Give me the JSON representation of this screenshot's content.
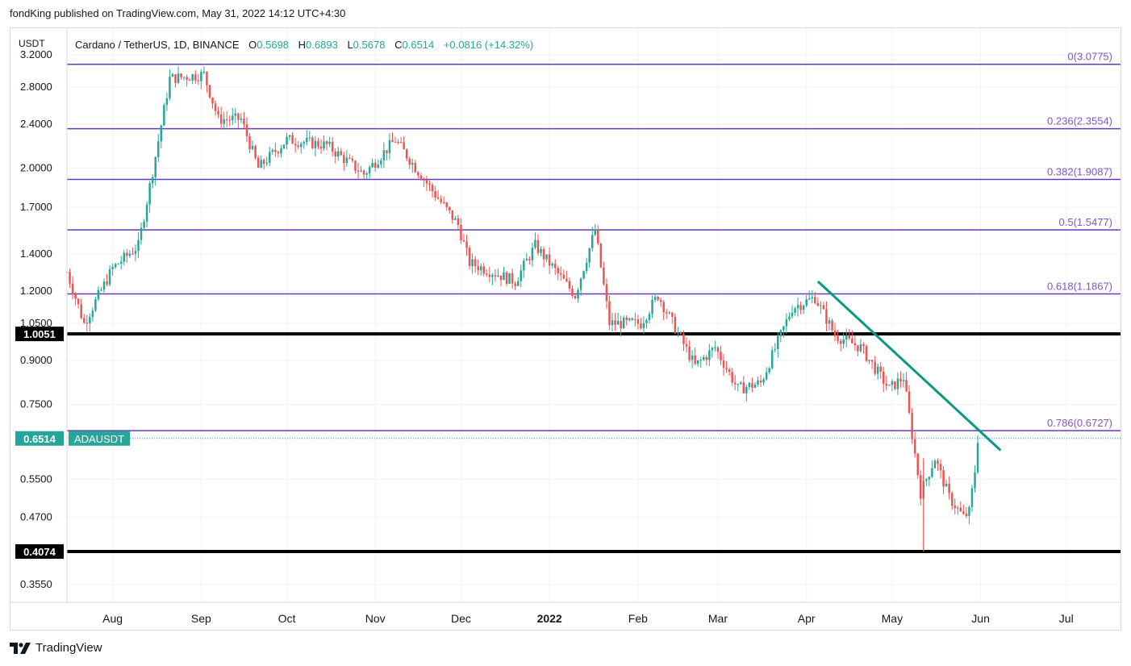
{
  "header": {
    "publish_line": "fondKing published on TradingView.com, May 31, 2022 14:12 UTC+4:30"
  },
  "legend": {
    "currency": "USDT",
    "symbol": "Cardano / TetherUS, 1D, BINANCE",
    "o_label": "O",
    "o_value": "0.5698",
    "h_label": "H",
    "h_value": "0.6893",
    "l_label": "L",
    "l_value": "0.5678",
    "c_label": "C",
    "c_value": "0.6514",
    "change": "+0.0816 (+14.32%)"
  },
  "price_axis": {
    "ticks": [
      "3.2000",
      "2.8000",
      "2.4000",
      "2.0000",
      "1.7000",
      "1.4000",
      "1.2000",
      "1.0500",
      "0.9000",
      "0.7500",
      "0.5500",
      "0.4700",
      "0.3550"
    ],
    "current_price_label": "0.6514",
    "symbol_tag": "ADAUSDT",
    "level_labels": [
      "1.0051",
      "0.4074"
    ]
  },
  "time_axis": {
    "ticks": [
      "Aug",
      "Sep",
      "Oct",
      "Nov",
      "Dec",
      "2022",
      "Feb",
      "Mar",
      "Apr",
      "May",
      "Jun",
      "Jul"
    ]
  },
  "fib_labels": [
    "0(3.0775)",
    "0.236(2.3554)",
    "0.382(1.9087)",
    "0.5(1.5477)",
    "0.618(1.1867)",
    "0.786(0.6727)"
  ],
  "colors": {
    "up": "#26a69a",
    "down": "#ef5350",
    "fib": "#673ab7",
    "fib_label": "#7e57c2",
    "trendline": "#089981",
    "level": "#000000",
    "grid": "#f0f3fa"
  },
  "footer": {
    "brand": "TradingView"
  },
  "chart_data": {
    "type": "candlestick",
    "title": "Cardano / TetherUS, 1D, BINANCE",
    "y_scale": "log",
    "ylim": [
      0.33,
      3.55
    ],
    "x_range": [
      "2021-07-16",
      "2022-07-20"
    ],
    "fib_levels": [
      {
        "ratio": 0,
        "price": 3.0775
      },
      {
        "ratio": 0.236,
        "price": 2.3554
      },
      {
        "ratio": 0.382,
        "price": 1.9087
      },
      {
        "ratio": 0.5,
        "price": 1.5477
      },
      {
        "ratio": 0.618,
        "price": 1.1867
      },
      {
        "ratio": 0.786,
        "price": 0.6727
      }
    ],
    "horizontal_levels": [
      1.0051,
      0.4074
    ],
    "trendline": [
      {
        "date": "2022-04-05",
        "price": 1.25
      },
      {
        "date": "2022-06-08",
        "price": 0.62
      }
    ],
    "current_price": 0.6514,
    "anchors": [
      {
        "date": "2021-07-16",
        "price": 1.3
      },
      {
        "date": "2021-07-22",
        "price": 1.05
      },
      {
        "date": "2021-08-01",
        "price": 1.32
      },
      {
        "date": "2021-08-10",
        "price": 1.45
      },
      {
        "date": "2021-08-16",
        "price": 2.1
      },
      {
        "date": "2021-08-21",
        "price": 2.9
      },
      {
        "date": "2021-09-02",
        "price": 2.95
      },
      {
        "date": "2021-09-07",
        "price": 2.45
      },
      {
        "date": "2021-09-15",
        "price": 2.45
      },
      {
        "date": "2021-09-21",
        "price": 2.0
      },
      {
        "date": "2021-10-01",
        "price": 2.25
      },
      {
        "date": "2021-10-15",
        "price": 2.2
      },
      {
        "date": "2021-10-28",
        "price": 1.95
      },
      {
        "date": "2021-11-08",
        "price": 2.25
      },
      {
        "date": "2021-11-20",
        "price": 1.85
      },
      {
        "date": "2021-11-30",
        "price": 1.58
      },
      {
        "date": "2021-12-04",
        "price": 1.35
      },
      {
        "date": "2021-12-20",
        "price": 1.25
      },
      {
        "date": "2021-12-27",
        "price": 1.45
      },
      {
        "date": "2022-01-10",
        "price": 1.18
      },
      {
        "date": "2022-01-17",
        "price": 1.55
      },
      {
        "date": "2022-01-22",
        "price": 1.05
      },
      {
        "date": "2022-02-02",
        "price": 1.05
      },
      {
        "date": "2022-02-08",
        "price": 1.18
      },
      {
        "date": "2022-02-21",
        "price": 0.88
      },
      {
        "date": "2022-02-28",
        "price": 0.95
      },
      {
        "date": "2022-03-08",
        "price": 0.8
      },
      {
        "date": "2022-03-16",
        "price": 0.82
      },
      {
        "date": "2022-03-27",
        "price": 1.12
      },
      {
        "date": "2022-04-04",
        "price": 1.17
      },
      {
        "date": "2022-04-11",
        "price": 1.0
      },
      {
        "date": "2022-04-20",
        "price": 0.95
      },
      {
        "date": "2022-04-30",
        "price": 0.8
      },
      {
        "date": "2022-05-05",
        "price": 0.84
      },
      {
        "date": "2022-05-11",
        "price": 0.52
      },
      {
        "date": "2022-05-16",
        "price": 0.6
      },
      {
        "date": "2022-05-21",
        "price": 0.51
      },
      {
        "date": "2022-05-26",
        "price": 0.47
      },
      {
        "date": "2022-05-28",
        "price": 0.48
      },
      {
        "date": "2022-05-30",
        "price": 0.5698
      },
      {
        "date": "2022-05-31",
        "price": 0.6514
      }
    ]
  }
}
